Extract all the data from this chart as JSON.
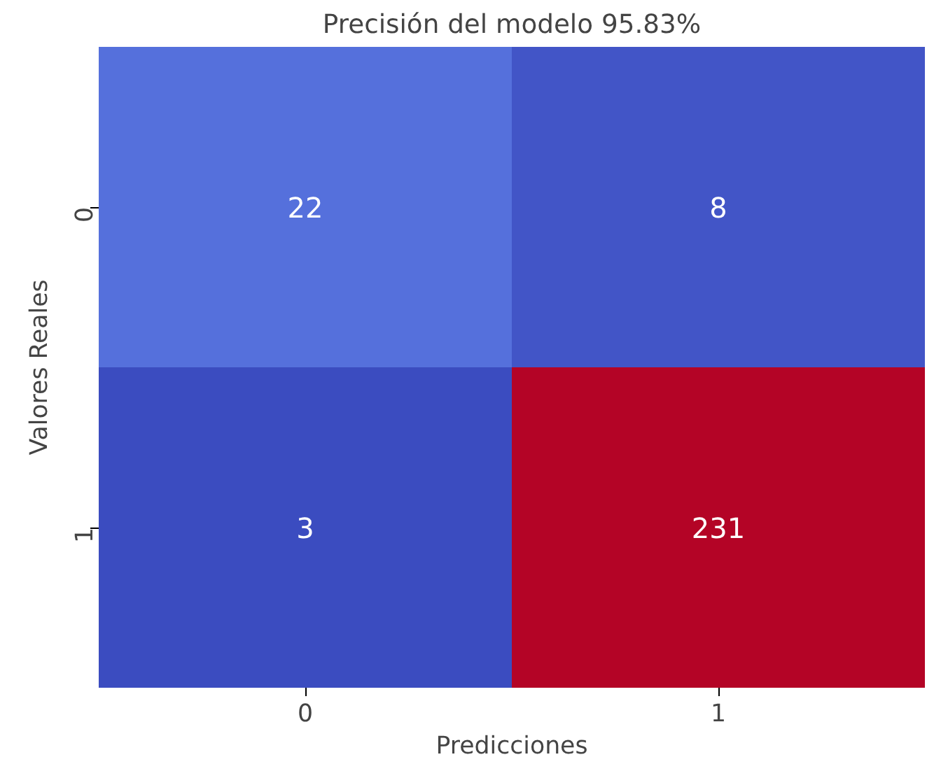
{
  "chart_data": {
    "type": "heatmap",
    "title": "Precisión del modelo 95.83%",
    "xlabel": "Predicciones",
    "ylabel": "Valores Reales",
    "data_labels": true,
    "categories": [
      "0",
      "1"
    ],
    "y_categories": [
      "0",
      "1"
    ],
    "cells": [
      [
        22,
        8
      ],
      [
        3,
        231
      ]
    ]
  }
}
